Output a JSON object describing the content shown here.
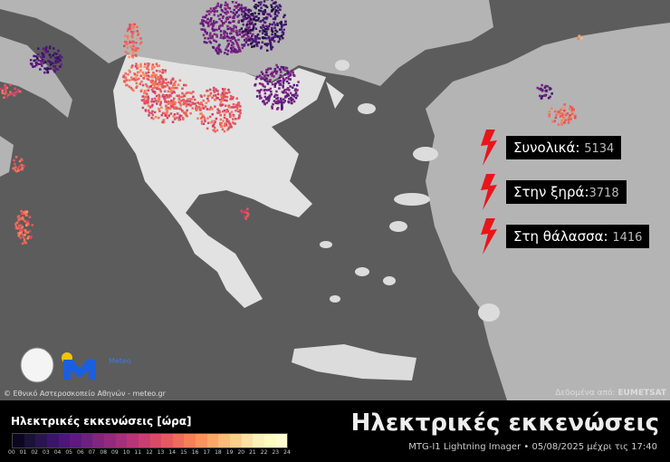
{
  "stats": [
    {
      "label": "Συνολικά:",
      "value": "5134"
    },
    {
      "label": "Στην ξηρά:",
      "value": "3718"
    },
    {
      "label": "Στη θάλασσα:",
      "value": "1416"
    }
  ],
  "credits": {
    "left": "© Εθνικό Αστεροσκοπείο Αθηνών - meteo.gr",
    "right_prefix": "Δεδομένα από:",
    "right_brand": "EUMETSAT",
    "logo_text": "Meteo"
  },
  "legend": {
    "title": "Ηλεκτρικές εκκενώσεις [ώρα]",
    "ticks": [
      "00",
      "01",
      "02",
      "03",
      "04",
      "05",
      "06",
      "07",
      "08",
      "09",
      "10",
      "11",
      "12",
      "13",
      "14",
      "15",
      "16",
      "17",
      "18",
      "19",
      "20",
      "21",
      "22",
      "23",
      "24"
    ],
    "colors": [
      "#0b0720",
      "#1b1238",
      "#2a1550",
      "#3b1668",
      "#4d1678",
      "#5e1a80",
      "#6f1f81",
      "#812581",
      "#932a7f",
      "#a62f7c",
      "#b93577",
      "#cb3e71",
      "#da4a68",
      "#e65a5f",
      "#f06c5a",
      "#f67f58",
      "#fa935e",
      "#fca76a",
      "#febb7a",
      "#fece8c",
      "#fee1a0",
      "#fcf1b6",
      "#fcfdbf",
      "#fffcd0"
    ]
  },
  "title": "Ηλεκτρικές εκκενώσεις",
  "subtitle": "MTG-I1 Lightning Imager • 05/08/2025 μέχρι τις 17:40",
  "colors": {
    "sea": "#5c5c5c",
    "land": "#b4b4b4",
    "greece": "#e2e2e2",
    "bolt": "#e8151b"
  }
}
